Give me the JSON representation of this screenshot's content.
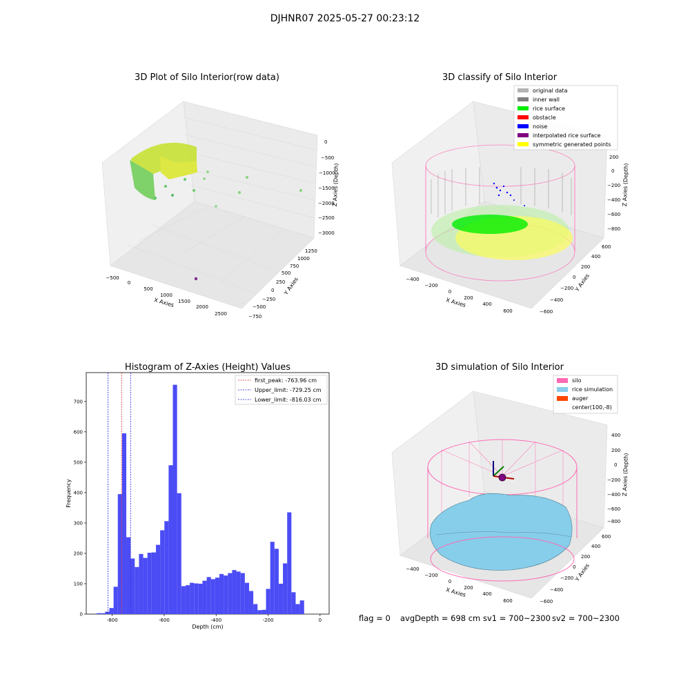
{
  "suptitle": "DJHNR07 2025-05-27 00:23:12",
  "footer": {
    "flag": "flag = 0",
    "avg": "avgDepth = 698 cm",
    "sv1": "sv1 = 700~2300",
    "sv2": "sv2 = 700~2300"
  },
  "colors": {
    "hist_bar": "#4c4cf5",
    "first_peak_line": "#d62728",
    "limit_line": "#1f1fd6",
    "silo": "#ff69b4",
    "rice_sim": "#87ceeb",
    "auger": "#ff4500",
    "rice_surface": "#00ee00",
    "noise": "#0000ff",
    "yellow": "#ffff00"
  },
  "chart_data": [
    {
      "type": "scatter3d",
      "title": "3D Plot of Silo Interior(row data)",
      "xlabel": "X Axies",
      "ylabel": "Y Axies",
      "zlabel": "Z Axies (Depth)",
      "xticks": [
        "−500",
        "0",
        "500",
        "1000",
        "1500",
        "2000",
        "2500"
      ],
      "yticks": [
        "−750",
        "−500",
        "−250",
        "0",
        "250",
        "500",
        "750",
        "1000",
        "1250"
      ],
      "zticks": [
        "0",
        "−500",
        "−1000",
        "−1500",
        "−2000",
        "−2500",
        "−3000"
      ]
    },
    {
      "type": "scatter3d",
      "title": "3D classify of Silo Interior",
      "xlabel": "X Axies",
      "ylabel": "Y Axies",
      "zlabel": "Z Axies (Depth)",
      "xticks": [
        "−400",
        "−200",
        "0",
        "200",
        "400",
        "600"
      ],
      "yticks": [
        "−600",
        "−400",
        "−200",
        "0",
        "200",
        "400",
        "600"
      ],
      "zticks": [
        "200",
        "0",
        "−200",
        "−400",
        "−600",
        "−800"
      ],
      "legend_position": "top-right",
      "legend": [
        {
          "label": "original data",
          "color": "#b4b4b4"
        },
        {
          "label": "inner wall",
          "color": "#808080"
        },
        {
          "label": "rice surface",
          "color": "#00ee00"
        },
        {
          "label": "obstacle",
          "color": "#ff0000"
        },
        {
          "label": "noise",
          "color": "#0000ff"
        },
        {
          "label": "interpolated rice surface",
          "color": "#800080"
        },
        {
          "label": "symmetric generated points",
          "color": "#ffff00"
        }
      ]
    },
    {
      "type": "bar",
      "title": "Histogram of Z-Axies (Height) Values",
      "xlabel": "Depth (cm)",
      "ylabel": "Frequency",
      "xlim": [
        -900,
        35
      ],
      "ylim": [
        0,
        795
      ],
      "xticks": [
        -800,
        -600,
        -400,
        -200,
        0
      ],
      "yticks": [
        0,
        100,
        200,
        300,
        400,
        500,
        600,
        700
      ],
      "bin_start": -860,
      "bin_width": 16.3,
      "values": [
        3,
        3,
        8,
        20,
        90,
        395,
        595,
        253,
        183,
        155,
        198,
        185,
        202,
        203,
        228,
        276,
        306,
        490,
        755,
        398,
        92,
        95,
        103,
        101,
        100,
        110,
        122,
        115,
        120,
        132,
        127,
        135,
        145,
        140,
        135,
        103,
        76,
        33,
        13,
        14,
        83,
        238,
        215,
        100,
        167,
        335,
        72,
        33,
        45
      ],
      "lines": [
        {
          "label": "first_peak: -763.96 cm",
          "x": -763.96,
          "color": "#d62728"
        },
        {
          "label": "Upper_limit: -729.25 cm",
          "x": -729.25,
          "color": "#1f1fd6"
        },
        {
          "label": "Lower_limit: -816.03 cm",
          "x": -816.03,
          "color": "#1f1fd6"
        }
      ],
      "legend_position": "top-right"
    },
    {
      "type": "surface3d",
      "title": "3D simulation of Silo Interior",
      "xlabel": "X Axies",
      "ylabel": "Y Axies",
      "zlabel": "Z Axies (Depth)",
      "xticks": [
        "−400",
        "−200",
        "0",
        "200",
        "400",
        "600"
      ],
      "yticks": [
        "−600",
        "−400",
        "−200",
        "0",
        "200",
        "400",
        "600"
      ],
      "zticks": [
        "400",
        "200",
        "0",
        "−200",
        "−400",
        "−600",
        "−800"
      ],
      "legend_position": "top-right",
      "legend": [
        {
          "label": "silo",
          "color": "#ff69b4"
        },
        {
          "label": "rice simulation",
          "color": "#87ceeb"
        },
        {
          "label": "auger",
          "color": "#ff4500"
        },
        {
          "label": "center(100,-8)",
          "color": ""
        }
      ]
    }
  ]
}
